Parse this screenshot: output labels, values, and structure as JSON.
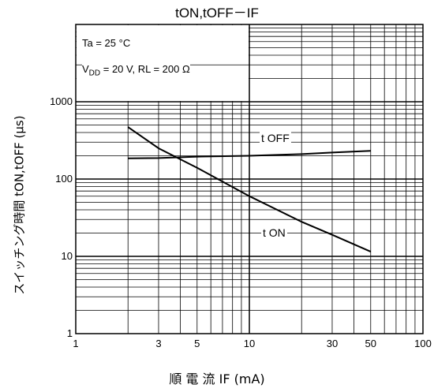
{
  "chart_data": {
    "type": "line",
    "title": "tON,tOFF－IF",
    "xlabel": "順 電 流 IF (mA)",
    "ylabel": "スイッチング時間 tON,tOFF (μs)",
    "x_scale": "log",
    "y_scale": "log",
    "xlim": [
      1,
      100
    ],
    "ylim": [
      1,
      10000
    ],
    "x_tick_labels": [
      "1",
      "3",
      "5",
      "10",
      "30",
      "50",
      "100"
    ],
    "x_tick_values": [
      1,
      3,
      5,
      10,
      30,
      50,
      100
    ],
    "y_tick_labels": [
      "1",
      "10",
      "100",
      "1000"
    ],
    "y_tick_values": [
      1,
      10,
      100,
      1000
    ],
    "grid": true,
    "conditions": [
      "Ta = 25 °C",
      "V",
      "DD",
      " = 20 V, RL = 200 Ω"
    ],
    "series": [
      {
        "name": "t OFF",
        "x": [
          2,
          3,
          5,
          10,
          20,
          30,
          50
        ],
        "y": [
          185,
          187,
          195,
          200,
          210,
          220,
          232
        ]
      },
      {
        "name": "t ON",
        "x": [
          2,
          3,
          5,
          10,
          20,
          30,
          50
        ],
        "y": [
          470,
          250,
          140,
          60,
          28,
          19,
          11.5
        ]
      }
    ]
  }
}
